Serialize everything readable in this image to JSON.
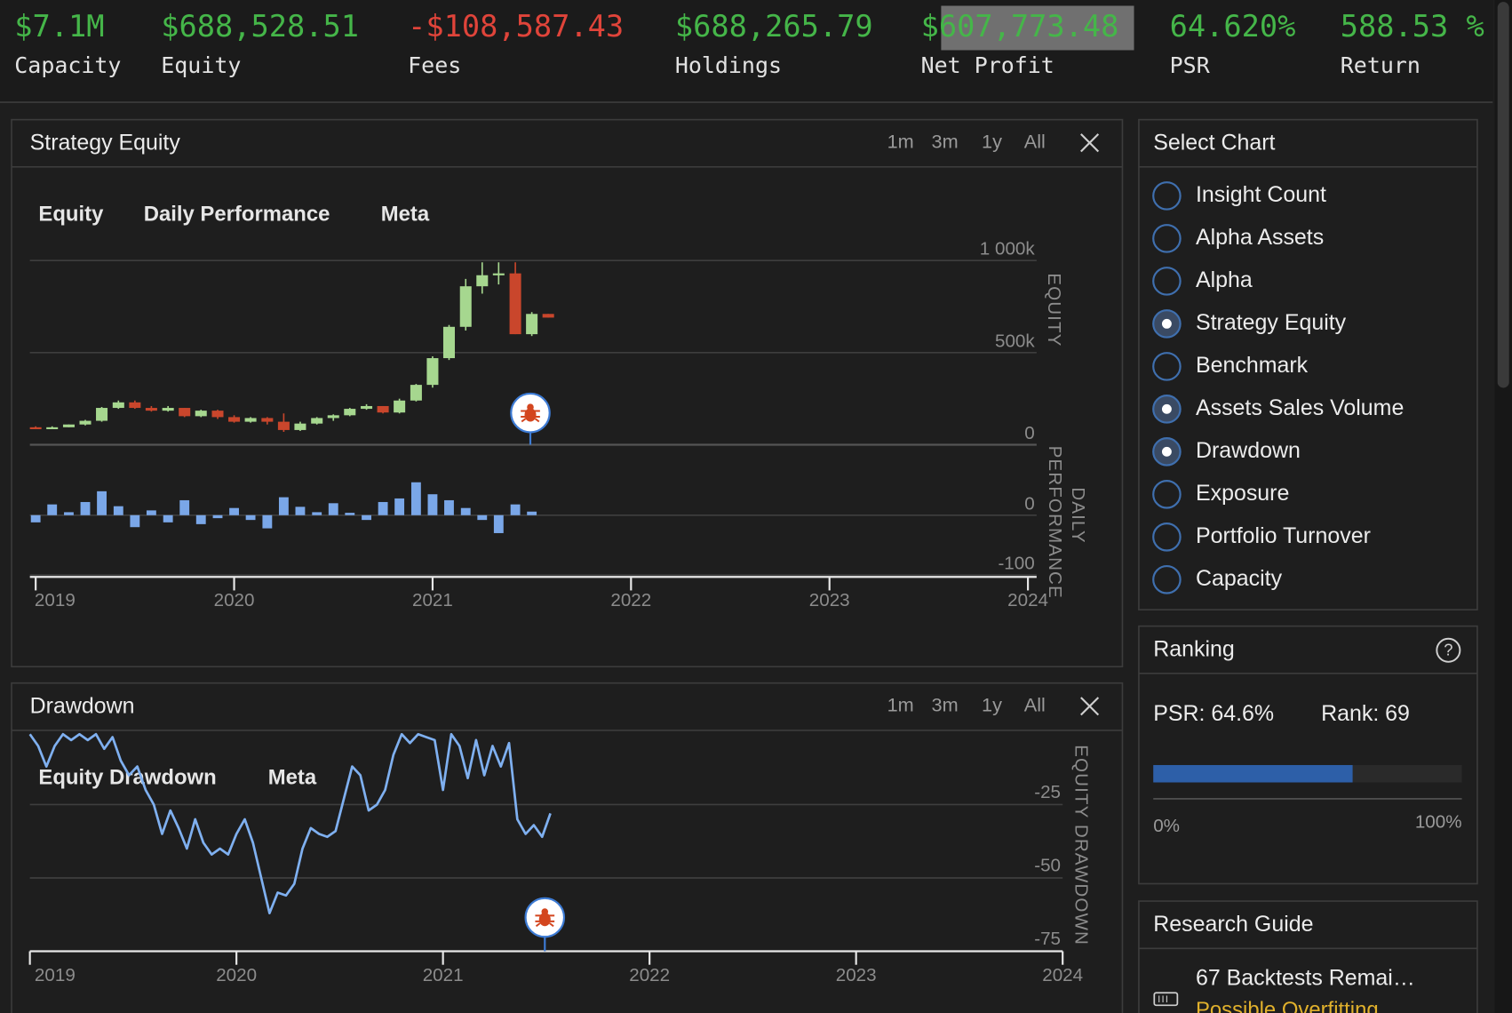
{
  "stats": [
    {
      "value": "$7.1M",
      "label": "Capacity",
      "color": "#45b649"
    },
    {
      "value": "$688,528.51",
      "label": "Equity",
      "color": "#45b649"
    },
    {
      "value": "-$108,587.43",
      "label": "Fees",
      "color": "#e0443a"
    },
    {
      "value": "$688,265.79",
      "label": "Holdings",
      "color": "#45b649"
    },
    {
      "value": "$607,773.48",
      "label": "Net Profit",
      "color": "#45b649"
    },
    {
      "value": "64.620%",
      "label": "PSR",
      "color": "#45b649"
    },
    {
      "value": "588.53 %",
      "label": "Return",
      "color": "#45b649"
    }
  ],
  "equity_panel": {
    "title": "Strategy Equity",
    "ranges": [
      "1m",
      "3m",
      "1y",
      "All"
    ],
    "tabs": [
      "Equity",
      "Daily Performance",
      "Meta"
    ]
  },
  "drawdown_panel": {
    "title": "Drawdown",
    "ranges": [
      "1m",
      "3m",
      "1y",
      "All"
    ],
    "tabs": [
      "Equity Drawdown",
      "Meta"
    ]
  },
  "chart_data": [
    {
      "type": "candlestick",
      "y_label": "EQUITY",
      "x": [
        2019,
        2019.083,
        2019.167,
        2019.25,
        2019.333,
        2019.417,
        2019.5,
        2019.583,
        2019.667,
        2019.75,
        2019.833,
        2019.917,
        2020,
        2020.083,
        2020.167,
        2020.25,
        2020.333,
        2020.417,
        2020.5,
        2020.583,
        2020.667,
        2020.75,
        2020.833,
        2020.917,
        2021,
        2021.083,
        2021.167,
        2021.25,
        2021.333,
        2021.417,
        2021.5,
        2021.583
      ],
      "open": [
        95000,
        85000,
        95000,
        110000,
        130000,
        200000,
        230000,
        200000,
        185000,
        200000,
        155000,
        185000,
        150000,
        125000,
        145000,
        125000,
        80000,
        115000,
        145000,
        160000,
        195000,
        210000,
        175000,
        240000,
        325000,
        470000,
        640000,
        860000,
        920000,
        930000,
        600000,
        710000
      ],
      "high": [
        100000,
        100000,
        110000,
        135000,
        205000,
        240000,
        240000,
        210000,
        210000,
        200000,
        190000,
        190000,
        160000,
        150000,
        150000,
        170000,
        125000,
        150000,
        165000,
        200000,
        220000,
        210000,
        250000,
        330000,
        480000,
        650000,
        900000,
        990000,
        990000,
        990000,
        720000,
        710000
      ],
      "low": [
        85000,
        85000,
        95000,
        105000,
        125000,
        195000,
        195000,
        180000,
        180000,
        150000,
        150000,
        140000,
        120000,
        120000,
        110000,
        70000,
        75000,
        110000,
        130000,
        155000,
        190000,
        170000,
        170000,
        235000,
        310000,
        460000,
        620000,
        820000,
        870000,
        600000,
        590000,
        690000
      ],
      "close": [
        85000,
        95000,
        110000,
        130000,
        200000,
        230000,
        200000,
        185000,
        200000,
        155000,
        185000,
        150000,
        125000,
        145000,
        125000,
        80000,
        115000,
        145000,
        160000,
        195000,
        210000,
        175000,
        240000,
        325000,
        470000,
        640000,
        860000,
        920000,
        930000,
        600000,
        710000,
        690000
      ],
      "up_color": "#a6d78f",
      "down_color": "#c9462c",
      "xlim": [
        2019,
        2024
      ],
      "ylim": [
        0,
        1000000
      ],
      "yticks": [
        0,
        {
          "value": 500000,
          "label": "500k"
        },
        {
          "value": 1000000,
          "label": "1 000k"
        }
      ],
      "grid": true
    },
    {
      "type": "bar",
      "y_label_lines": [
        "DAILY",
        "PERFORMANCE"
      ],
      "x": [
        2019,
        2019.083,
        2019.167,
        2019.25,
        2019.333,
        2019.417,
        2019.5,
        2019.583,
        2019.667,
        2019.75,
        2019.833,
        2019.917,
        2020,
        2020.083,
        2020.167,
        2020.25,
        2020.333,
        2020.417,
        2020.5,
        2020.583,
        2020.667,
        2020.75,
        2020.833,
        2020.917,
        2021,
        2021.083,
        2021.167,
        2021.25,
        2021.333,
        2021.417,
        2021.5
      ],
      "values": [
        -12,
        18,
        5,
        22,
        40,
        15,
        -20,
        8,
        -12,
        25,
        -15,
        -5,
        12,
        -8,
        -22,
        30,
        14,
        5,
        20,
        4,
        -8,
        22,
        28,
        55,
        35,
        25,
        12,
        -8,
        -30,
        18,
        6
      ],
      "color": "#7aa7e8",
      "xlim": [
        2019,
        2024
      ],
      "ylim": [
        -100,
        100
      ],
      "yticks": [
        -100,
        0
      ],
      "xticks": [
        2019,
        2020,
        2021,
        2022,
        2023,
        2024
      ],
      "grid": true
    },
    {
      "type": "line",
      "y_label": "EQUITY DRAWDOWN",
      "x": [
        2019,
        2019.04,
        2019.08,
        2019.12,
        2019.16,
        2019.2,
        2019.24,
        2019.28,
        2019.32,
        2019.36,
        2019.4,
        2019.44,
        2019.48,
        2019.52,
        2019.56,
        2019.6,
        2019.64,
        2019.68,
        2019.72,
        2019.76,
        2019.8,
        2019.84,
        2019.88,
        2019.92,
        2019.96,
        2020,
        2020.04,
        2020.08,
        2020.12,
        2020.16,
        2020.2,
        2020.24,
        2020.28,
        2020.32,
        2020.36,
        2020.4,
        2020.44,
        2020.48,
        2020.52,
        2020.56,
        2020.6,
        2020.64,
        2020.68,
        2020.72,
        2020.76,
        2020.8,
        2020.84,
        2020.88,
        2020.92,
        2020.96,
        2021,
        2021.04,
        2021.08,
        2021.12,
        2021.16,
        2021.2,
        2021.24,
        2021.28,
        2021.32,
        2021.36,
        2021.4,
        2021.44,
        2021.48,
        2021.52
      ],
      "values": [
        -1,
        -5,
        -12,
        -5,
        -1,
        -3,
        -1,
        -3,
        -1,
        -6,
        -2,
        -10,
        -15,
        -12,
        -20,
        -25,
        -35,
        -27,
        -33,
        -40,
        -30,
        -38,
        -42,
        -40,
        -42,
        -35,
        -30,
        -38,
        -50,
        -62,
        -55,
        -56,
        -52,
        -40,
        -33,
        -35,
        -36,
        -34,
        -23,
        -12,
        -15,
        -27,
        -25,
        -20,
        -8,
        -1,
        -4,
        -1,
        -2,
        -3,
        -20,
        -1,
        -5,
        -16,
        -3,
        -15,
        -5,
        -12,
        -4,
        -30,
        -35,
        -32,
        -36,
        -28
      ],
      "color": "#7fb0f0",
      "xlim": [
        2019,
        2024
      ],
      "ylim": [
        -75,
        0
      ],
      "yticks": [
        -25,
        -50,
        -75
      ],
      "xticks": [
        2019,
        2020,
        2021,
        2022,
        2023,
        2024
      ],
      "grid": true
    }
  ],
  "select_chart": {
    "title": "Select Chart",
    "items": [
      {
        "label": "Insight Count",
        "selected": false
      },
      {
        "label": "Alpha Assets",
        "selected": false
      },
      {
        "label": "Alpha",
        "selected": false
      },
      {
        "label": "Strategy Equity",
        "selected": true
      },
      {
        "label": "Benchmark",
        "selected": false
      },
      {
        "label": "Assets Sales Volume",
        "selected": true
      },
      {
        "label": "Drawdown",
        "selected": true
      },
      {
        "label": "Exposure",
        "selected": false
      },
      {
        "label": "Portfolio Turnover",
        "selected": false
      },
      {
        "label": "Capacity",
        "selected": false
      }
    ]
  },
  "ranking": {
    "title": "Ranking",
    "help": "?",
    "psr": "PSR: 64.6%",
    "rank": "Rank: 69",
    "progress": 64.6,
    "progress_lim": [
      0,
      100
    ],
    "progress_color": "#2d5fa8",
    "min_label": "0%",
    "max_label": "100%"
  },
  "research_guide": {
    "title": "Research Guide",
    "backtests": "67 Backtests Remai…",
    "warning": "Possible Overfitting"
  }
}
